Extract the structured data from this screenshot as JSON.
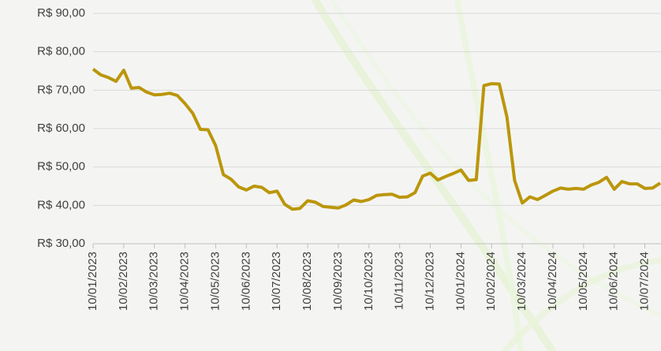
{
  "chart_data": {
    "type": "line",
    "categories": [
      "10/01/2023",
      null,
      null,
      null,
      "10/02/2023",
      null,
      null,
      null,
      "10/03/2023",
      null,
      null,
      null,
      "10/04/2023",
      null,
      null,
      null,
      "10/05/2023",
      null,
      null,
      null,
      "10/06/2023",
      null,
      null,
      null,
      "10/07/2023",
      null,
      null,
      null,
      "10/08/2023",
      null,
      null,
      null,
      "10/09/2023",
      null,
      null,
      null,
      "10/10/2023",
      null,
      null,
      null,
      "10/11/2023",
      null,
      null,
      null,
      "10/12/2023",
      null,
      null,
      null,
      "10/01/2024",
      null,
      null,
      null,
      "10/02/2024",
      null,
      null,
      null,
      "10/03/2024",
      null,
      null,
      null,
      "10/04/2024",
      null,
      null,
      null,
      "10/05/2024",
      null,
      null,
      null,
      "10/06/2024",
      null,
      null,
      null,
      "10/07/2024",
      null,
      null
    ],
    "values": [
      75.5,
      74,
      73.3,
      72.3,
      75.2,
      70.5,
      70.7,
      69.5,
      68.8,
      68.9,
      69.2,
      68.6,
      66.5,
      64,
      59.8,
      59.7,
      55.5,
      48,
      46.8,
      44.8,
      44,
      45,
      44.7,
      43.3,
      43.7,
      40.3,
      39,
      39.2,
      41.2,
      40.8,
      39.7,
      39.5,
      39.3,
      40.1,
      41.4,
      41,
      41.5,
      42.6,
      42.8,
      42.9,
      42.1,
      42.2,
      43.3,
      47.6,
      48.4,
      46.6,
      47.5,
      48.3,
      49.2,
      46.5,
      46.7,
      71.2,
      71.7,
      71.6,
      63,
      46.5,
      40.6,
      42.2,
      41.5,
      42.6,
      43.7,
      44.5,
      44.2,
      44.4,
      44.2,
      45.3,
      46,
      47.3,
      44.2,
      46.2,
      45.6,
      45.6,
      44.4,
      44.5,
      45.8
    ],
    "color": "#bb960b",
    "ylim": [
      30,
      90
    ],
    "yticks": [
      {
        "value": 30,
        "label": "R$ 30,00"
      },
      {
        "value": 40,
        "label": "R$ 40,00"
      },
      {
        "value": 50,
        "label": "R$ 50,00"
      },
      {
        "value": 60,
        "label": "R$ 60,00"
      },
      {
        "value": 70,
        "label": "R$ 70,00"
      },
      {
        "value": 80,
        "label": "R$ 80,00"
      },
      {
        "value": 90,
        "label": "R$ 90,00"
      }
    ],
    "grid": true
  }
}
